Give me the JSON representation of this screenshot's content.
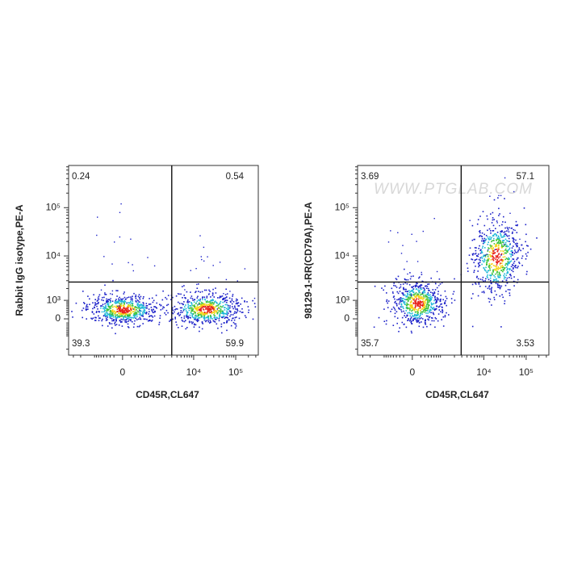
{
  "chart_data": [
    {
      "type": "scatter",
      "xlabel": "CD45R,CL647",
      "ylabel": "Rabbit IgG isotype,PE-A",
      "scale": "biexponential",
      "xlim": [
        -3900,
        344000
      ],
      "ylim": [
        -2730,
        747000
      ],
      "xticks": [
        0,
        {
          "value": 10000,
          "label": "10⁴"
        },
        {
          "value": 100000,
          "label": "10⁵"
        }
      ],
      "yticks": [
        0,
        {
          "value": 1000,
          "label": "10³"
        },
        {
          "value": 10000,
          "label": "10⁴"
        },
        {
          "value": 100000,
          "label": "10⁵"
        }
      ],
      "gate": [
        3000,
        2800
      ],
      "x": [
        0,
        19500
      ],
      "y": [
        480,
        500
      ],
      "quadrant_values": [
        0.24,
        0.54,
        39.3,
        59.9
      ]
    },
    {
      "type": "scatter",
      "xlabel": "CD45R,CL647",
      "ylabel": "98129-1-RR(CD79A),PE-A",
      "scale": "biexponential",
      "xlim": [
        -4000,
        344000
      ],
      "ylim": [
        -2730,
        747000
      ],
      "xticks": [
        0,
        {
          "value": 10000,
          "label": "10⁴"
        },
        {
          "value": 100000,
          "label": "10⁵"
        }
      ],
      "yticks": [
        0,
        {
          "value": 1000,
          "label": "10³"
        },
        {
          "value": 10000,
          "label": "10⁴"
        },
        {
          "value": 100000,
          "label": "10⁵"
        }
      ],
      "gate": [
        2900,
        2800
      ],
      "x": [
        110,
        19500
      ],
      "y": [
        850,
        9600
      ],
      "quadrant_values": [
        3.69,
        57.1,
        35.7,
        3.53
      ],
      "watermark": "WWW.PTGLAB.COM"
    }
  ]
}
